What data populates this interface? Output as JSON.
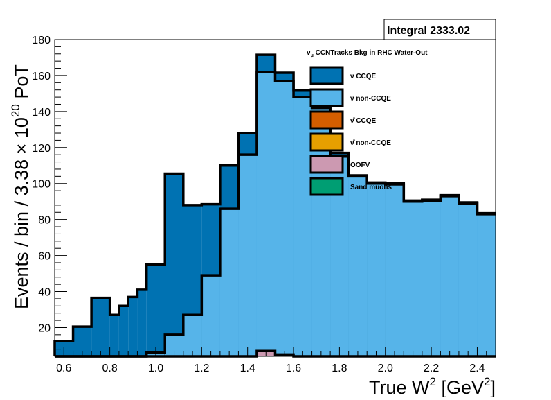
{
  "stats_box": {
    "text": "Integral 2333.02"
  },
  "legend": {
    "title_nu": "ν",
    "title_sub": "μ",
    "title_rest": " CCNTracks Bkg in RHC Water-Out"
  },
  "colors": {
    "nu_ccqe": "#0072b2",
    "nu_noncc": "#56b4e9",
    "nubar_ccqe": "#d55e00",
    "nubar_noncc": "#e69f00",
    "oofv": "#cc99b1",
    "sand": "#009e73"
  },
  "chart_data": {
    "type": "stacked-histogram",
    "ylabel": "Events / bin / 3.38 × 10²⁰ PoT",
    "ylabel_parts": {
      "pre": "Events / bin / 3.38 × 10",
      "sup": "20",
      "post": " PoT"
    },
    "xlabel": "True W² [GeV²]",
    "xlabel_parts": {
      "pre": "True W",
      "sup1": "2",
      "mid": " [GeV",
      "sup2": "2",
      "post": "]"
    },
    "xlim": [
      0.56,
      2.48
    ],
    "ylim": [
      4,
      180
    ],
    "x_ticks": [
      0.6,
      0.8,
      1.0,
      1.2,
      1.4,
      1.6,
      1.8,
      2.0,
      2.2,
      2.4
    ],
    "x_tick_labels": [
      "0.6",
      "0.8",
      "1.0",
      "1.2",
      "1.4",
      "1.6",
      "1.8",
      "2.0",
      "2.2",
      "2.4"
    ],
    "y_ticks": [
      20,
      40,
      60,
      80,
      100,
      120,
      140,
      160,
      180
    ],
    "y_tick_labels": [
      "20",
      "40",
      "60",
      "80",
      "100",
      "120",
      "140",
      "160",
      "180"
    ],
    "bin_edges": [
      0.56,
      0.64,
      0.72,
      0.8,
      0.84,
      0.88,
      0.92,
      0.96,
      1.04,
      1.12,
      1.2,
      1.28,
      1.36,
      1.44,
      1.52,
      1.6,
      1.68,
      1.76,
      1.84,
      1.92,
      2.0,
      2.08,
      2.16,
      2.24,
      2.32,
      2.4,
      2.48
    ],
    "series": [
      {
        "name": "ν CCQE",
        "color_key": "nu_ccqe",
        "values": [
          12.5,
          20.5,
          36.5,
          27,
          32,
          37,
          41,
          55,
          105.5,
          88,
          88.5,
          110,
          128,
          171.5,
          161.5,
          152,
          150,
          117,
          104.5,
          100.5,
          100,
          90.5,
          91,
          93.5,
          89.5,
          83.5
        ]
      },
      {
        "name": "ν non-CCQE",
        "color_key": "nu_noncc",
        "values": [
          0,
          0,
          0,
          0,
          0,
          0,
          0,
          6,
          16,
          27,
          49,
          86,
          116,
          162,
          157,
          148,
          142,
          115,
          104,
          100,
          99.5,
          90,
          90.5,
          93,
          89,
          83
        ]
      },
      {
        "name": "ν̄ CCQE",
        "color_key": "nubar_ccqe",
        "values": []
      },
      {
        "name": "ν̄ non-CCQE",
        "color_key": "nubar_noncc",
        "values": []
      },
      {
        "name": "OOFV",
        "color_key": "oofv",
        "values": [
          0,
          0,
          0,
          0,
          0,
          0,
          0,
          0,
          0,
          0,
          0,
          0,
          0,
          7,
          5,
          0,
          0,
          0,
          0,
          0,
          0,
          0,
          0,
          0,
          0,
          0
        ]
      },
      {
        "name": "Sand muons",
        "color_key": "sand",
        "values": []
      }
    ],
    "legend_items": [
      {
        "label": "ν  CCQE",
        "color_key": "nu_ccqe"
      },
      {
        "label": "ν  non-CCQE",
        "color_key": "nu_noncc"
      },
      {
        "label": "ν̄  CCQE",
        "color_key": "nubar_ccqe"
      },
      {
        "label": "ν̄  non-CCQE",
        "color_key": "nubar_noncc"
      },
      {
        "label": "OOFV",
        "color_key": "oofv"
      },
      {
        "label": "Sand muons",
        "color_key": "sand"
      }
    ],
    "grid": false,
    "legend_position": "top-center"
  }
}
